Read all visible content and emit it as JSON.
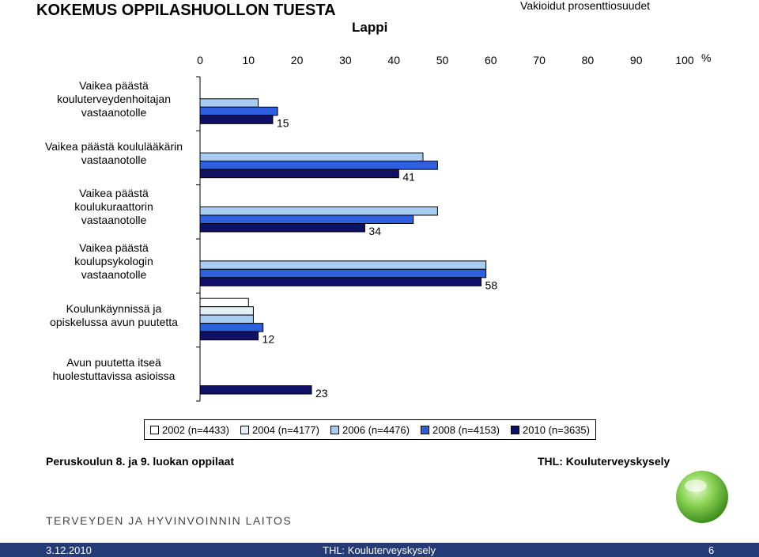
{
  "header": {
    "title": "KOKEMUS OPPILASHUOLLON TUESTA",
    "subtitle": "Lappi",
    "note": "Vakioidut prosenttiosuudet"
  },
  "chart_data": {
    "type": "bar",
    "orientation": "horizontal",
    "xlim": [
      0,
      100
    ],
    "x_ticks": [
      "0",
      "10",
      "20",
      "30",
      "40",
      "50",
      "60",
      "70",
      "80",
      "90",
      "100"
    ],
    "unit": "%",
    "grid": false,
    "legend_position": "bottom",
    "categories": [
      "Vaikea päästä kouluterveydenhoitajan vastaanotolle",
      "Vaikea päästä koululääkärin vastaanotolle",
      "Vaikea päästä koulukuraattorin vastaanotolle",
      "Vaikea päästä koulupsykologin vastaanotolle",
      "Koulunkäynnissä ja opiskelussa avun puutetta",
      "Avun puutetta itseä huolestuttavissa asioissa"
    ],
    "category_lines": [
      [
        "Vaikea päästä",
        "kouluterveydenhoitajan",
        "vastaanotolle"
      ],
      [
        "Vaikea päästä koululääkärin",
        "vastaanotolle"
      ],
      [
        "Vaikea päästä",
        "koulukuraattorin",
        "vastaanotolle"
      ],
      [
        "Vaikea päästä",
        "koulupsykologin",
        "vastaanotolle"
      ],
      [
        "Koulunkäynnissä ja",
        "opiskelussa avun puutetta"
      ],
      [
        "Avun puutetta itseä",
        "huolestuttavissa asioissa"
      ]
    ],
    "series": [
      {
        "name": "2002 (n=4433)",
        "color": "#ffffff",
        "values": [
          null,
          null,
          null,
          null,
          10,
          null
        ]
      },
      {
        "name": "2004 (n=4177)",
        "color": "#e4effa",
        "values": [
          null,
          null,
          null,
          null,
          11,
          null
        ]
      },
      {
        "name": "2006 (n=4476)",
        "color": "#a9cdf2",
        "values": [
          12,
          46,
          49,
          59,
          11,
          null
        ]
      },
      {
        "name": "2008 (n=4153)",
        "color": "#2e5fe0",
        "values": [
          16,
          49,
          44,
          59,
          13,
          null
        ]
      },
      {
        "name": "2010 (n=3635)",
        "color": "#101066",
        "values": [
          15,
          41,
          34,
          58,
          12,
          23
        ]
      }
    ],
    "data_labels": [
      "15",
      "41",
      "34",
      "58",
      "12",
      "23"
    ]
  },
  "footer": {
    "left": "Peruskoulun 8. ja 9. luokan oppilaat",
    "right": "THL: Kouluterveyskysely",
    "org": "TERVEYDEN JA HYVINVOINNIN LAITOS"
  },
  "bottom_bar": {
    "date": "3.12.2010",
    "source": "THL: Kouluterveyskysely",
    "page": "6"
  },
  "colors": {
    "bottom_bar": "#243b76",
    "logo_green": "#6fc13a"
  }
}
